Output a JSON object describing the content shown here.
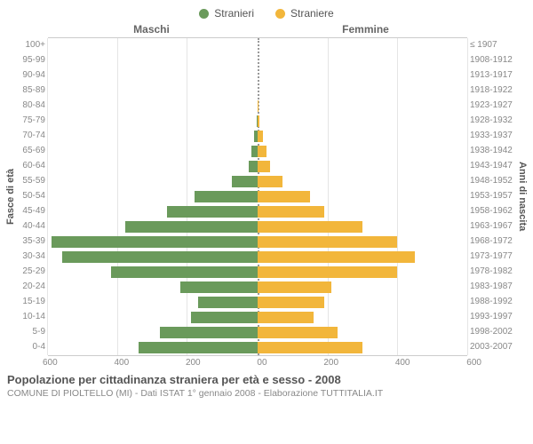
{
  "legend": {
    "male": {
      "label": "Stranieri",
      "color": "#6a9a5b"
    },
    "female": {
      "label": "Straniere",
      "color": "#f2b63b"
    }
  },
  "headers": {
    "left": "Maschi",
    "right": "Femmine"
  },
  "y_left_title": "Fasce di età",
  "y_right_title": "Anni di nascita",
  "chart": {
    "type": "population-pyramid",
    "max_value": 600,
    "bar_color_male": "#6a9a5b",
    "bar_color_female": "#f2b63b",
    "grid_color": "#e5e5e5",
    "center_line_color": "#999999",
    "background_color": "#ffffff",
    "x_ticks_left": [
      "600",
      "400",
      "200",
      "0"
    ],
    "x_ticks_right": [
      "0",
      "200",
      "400",
      "600"
    ],
    "rows": [
      {
        "age": "100+",
        "year": "≤ 1907",
        "m": 0,
        "f": 0
      },
      {
        "age": "95-99",
        "year": "1908-1912",
        "m": 0,
        "f": 0
      },
      {
        "age": "90-94",
        "year": "1913-1917",
        "m": 0,
        "f": 0
      },
      {
        "age": "85-89",
        "year": "1918-1922",
        "m": 0,
        "f": 0
      },
      {
        "age": "80-84",
        "year": "1923-1927",
        "m": 0,
        "f": 2
      },
      {
        "age": "75-79",
        "year": "1928-1932",
        "m": 3,
        "f": 5
      },
      {
        "age": "70-74",
        "year": "1933-1937",
        "m": 10,
        "f": 15
      },
      {
        "age": "65-69",
        "year": "1938-1942",
        "m": 18,
        "f": 25
      },
      {
        "age": "60-64",
        "year": "1943-1947",
        "m": 25,
        "f": 35
      },
      {
        "age": "55-59",
        "year": "1948-1952",
        "m": 75,
        "f": 70
      },
      {
        "age": "50-54",
        "year": "1953-1957",
        "m": 180,
        "f": 150
      },
      {
        "age": "45-49",
        "year": "1958-1962",
        "m": 260,
        "f": 190
      },
      {
        "age": "40-44",
        "year": "1963-1967",
        "m": 380,
        "f": 300
      },
      {
        "age": "35-39",
        "year": "1968-1972",
        "m": 590,
        "f": 400
      },
      {
        "age": "30-34",
        "year": "1973-1977",
        "m": 560,
        "f": 450
      },
      {
        "age": "25-29",
        "year": "1978-1982",
        "m": 420,
        "f": 400
      },
      {
        "age": "20-24",
        "year": "1983-1987",
        "m": 220,
        "f": 210
      },
      {
        "age": "15-19",
        "year": "1988-1992",
        "m": 170,
        "f": 190
      },
      {
        "age": "10-14",
        "year": "1993-1997",
        "m": 190,
        "f": 160
      },
      {
        "age": "5-9",
        "year": "1998-2002",
        "m": 280,
        "f": 230
      },
      {
        "age": "0-4",
        "year": "2003-2007",
        "m": 340,
        "f": 300
      }
    ]
  },
  "footer": {
    "title": "Popolazione per cittadinanza straniera per età e sesso - 2008",
    "subtitle": "COMUNE DI PIOLTELLO (MI) - Dati ISTAT 1° gennaio 2008 - Elaborazione TUTTITALIA.IT"
  }
}
